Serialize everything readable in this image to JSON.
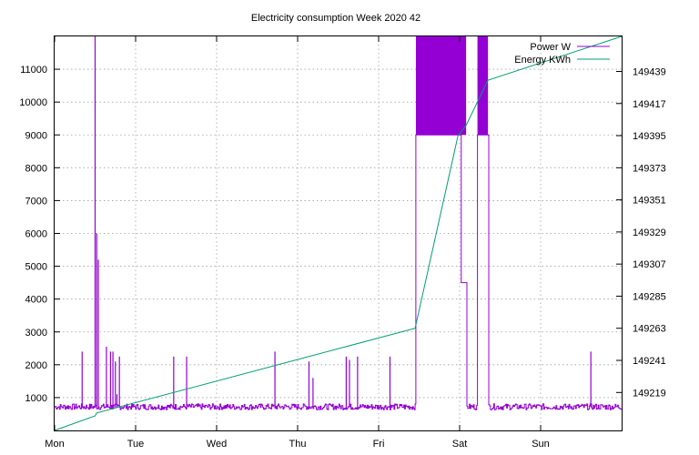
{
  "chart_data": {
    "type": "line",
    "title": "Electricity consumption Week 2020 42",
    "xlabel": "",
    "ylabel": "",
    "y2label": "",
    "grid": true,
    "legend_position": "top-right",
    "x_unit": "days since Monday 00:00",
    "xlim": [
      0,
      7
    ],
    "ylim": [
      0,
      12000
    ],
    "y2lim": [
      149193,
      149463
    ],
    "x_tick_labels": [
      "Mon",
      "Tue",
      "Wed",
      "Thu",
      "Fri",
      "Sat",
      "Sun"
    ],
    "x_tick_values": [
      0,
      1,
      2,
      3,
      4,
      5,
      6
    ],
    "y_ticks": [
      1000,
      2000,
      3000,
      4000,
      5000,
      6000,
      7000,
      8000,
      9000,
      10000,
      11000
    ],
    "y2_ticks": [
      149219,
      149241,
      149263,
      149285,
      149307,
      149329,
      149351,
      149373,
      149395,
      149417,
      149439
    ],
    "series": [
      {
        "name": "Power W",
        "axis": "y1",
        "color": "#9400d3",
        "baseline": {
          "mean": 720,
          "amplitude": 90
        },
        "spikes": [
          {
            "x": 0.34,
            "y": 2400
          },
          {
            "x": 0.5,
            "y": 12000
          },
          {
            "x": 0.52,
            "y": 6000
          },
          {
            "x": 0.54,
            "y": 5200
          },
          {
            "x": 0.64,
            "y": 2550
          },
          {
            "x": 0.69,
            "y": 2400
          },
          {
            "x": 0.72,
            "y": 2400
          },
          {
            "x": 0.75,
            "y": 2100
          },
          {
            "x": 0.77,
            "y": 1100
          },
          {
            "x": 0.8,
            "y": 2250
          },
          {
            "x": 1.47,
            "y": 2250
          },
          {
            "x": 1.63,
            "y": 2250
          },
          {
            "x": 2.72,
            "y": 2400
          },
          {
            "x": 3.14,
            "y": 2100
          },
          {
            "x": 3.19,
            "y": 1600
          },
          {
            "x": 3.6,
            "y": 2250
          },
          {
            "x": 3.64,
            "y": 2150
          },
          {
            "x": 3.74,
            "y": 2250
          },
          {
            "x": 4.14,
            "y": 2250
          },
          {
            "x": 6.62,
            "y": 2400
          }
        ],
        "bursts": [
          {
            "x0": 4.46,
            "x1": 5.08,
            "low": 9000,
            "high": 12000
          },
          {
            "x0": 5.22,
            "x1": 5.35,
            "low": 9000,
            "high": 12000
          }
        ],
        "dips": [
          {
            "x0": 5.02,
            "x1": 5.08,
            "y": 4500
          }
        ]
      },
      {
        "name": "Energy KWh",
        "axis": "y2",
        "color": "#009e73",
        "x": [
          0,
          0.5,
          0.52,
          4.45,
          4.98,
          5.08,
          5.35,
          7.0
        ],
        "y": [
          149193,
          149203,
          149205,
          149263,
          149395,
          149402,
          149433,
          149463
        ]
      }
    ]
  }
}
